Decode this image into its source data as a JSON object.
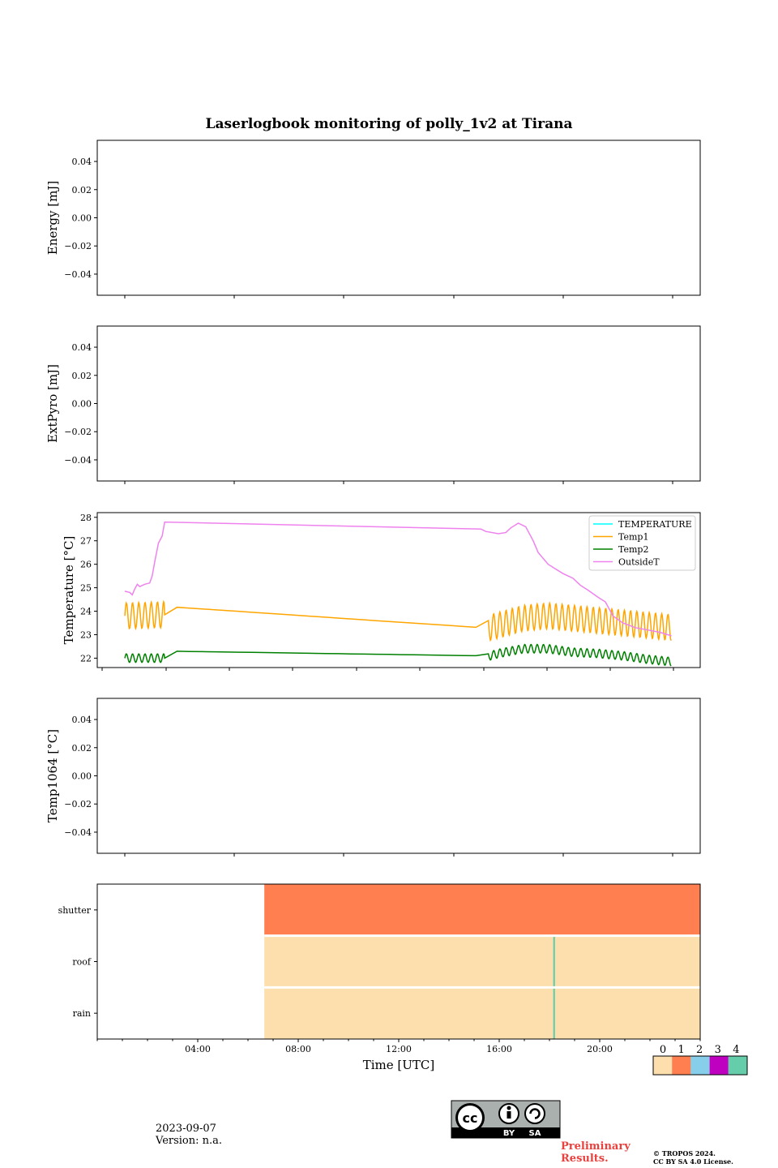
{
  "chart_data": [
    {
      "type": "line",
      "title": "Laserlogbook monitoring of polly_1v2 at Tirana",
      "ylabel": "Energy [mJ]",
      "ylim": [
        -0.055,
        0.055
      ],
      "yticks": [
        "0.04",
        "0.02",
        "0.00",
        "−0.02",
        "−0.04"
      ],
      "series": []
    },
    {
      "type": "line",
      "ylabel": "ExtPyro [mJ]",
      "ylim": [
        -0.055,
        0.055
      ],
      "yticks": [
        "0.04",
        "0.02",
        "0.00",
        "−0.02",
        "−0.04"
      ],
      "series": []
    },
    {
      "type": "line",
      "ylabel": "Temperature [°C]",
      "ylim": [
        21.6,
        28.2
      ],
      "yticks": [
        "28",
        "27",
        "26",
        "25",
        "24",
        "23",
        "22"
      ],
      "legend": "top-right",
      "series": [
        {
          "name": "TEMPERATURE",
          "color": "#00ffff",
          "points": []
        },
        {
          "name": "Temp1",
          "color": "#ffa500",
          "base": [
            [
              1.0,
              23.8
            ],
            [
              2.6,
              23.85
            ],
            [
              2.65,
              24.2
            ],
            [
              15.3,
              23.3
            ],
            [
              15.35,
              23.2
            ],
            [
              16.0,
              23.4
            ],
            [
              17.0,
              23.7
            ],
            [
              18.0,
              23.8
            ],
            [
              19.0,
              23.7
            ],
            [
              20.0,
              23.6
            ],
            [
              21.0,
              23.5
            ],
            [
              22.0,
              23.4
            ],
            [
              22.95,
              23.3
            ]
          ],
          "amp": 0.55,
          "period": 0.25,
          "osc_ranges": [
            [
              1.0,
              2.6
            ],
            [
              15.3,
              22.95
            ]
          ]
        },
        {
          "name": "Temp2",
          "color": "#008000",
          "base": [
            [
              1.0,
              22.0
            ],
            [
              2.6,
              22.0
            ],
            [
              2.65,
              22.3
            ],
            [
              15.3,
              22.1
            ],
            [
              15.35,
              22.0
            ],
            [
              16.0,
              22.2
            ],
            [
              17.0,
              22.4
            ],
            [
              18.0,
              22.4
            ],
            [
              19.0,
              22.25
            ],
            [
              20.0,
              22.2
            ],
            [
              21.0,
              22.1
            ],
            [
              22.0,
              21.95
            ],
            [
              22.95,
              21.85
            ]
          ],
          "amp": 0.18,
          "period": 0.25,
          "osc_ranges": [
            [
              1.0,
              2.6
            ],
            [
              15.3,
              22.95
            ]
          ]
        },
        {
          "name": "OutsideT",
          "color": "#ee82ee",
          "points": [
            [
              1.0,
              24.85
            ],
            [
              1.2,
              24.8
            ],
            [
              1.3,
              24.7
            ],
            [
              1.4,
              24.95
            ],
            [
              1.5,
              25.15
            ],
            [
              1.6,
              25.05
            ],
            [
              1.8,
              25.15
            ],
            [
              2.0,
              25.2
            ],
            [
              2.1,
              25.5
            ],
            [
              2.2,
              26.1
            ],
            [
              2.35,
              26.9
            ],
            [
              2.5,
              27.2
            ],
            [
              2.6,
              27.8
            ],
            [
              15.3,
              27.5
            ],
            [
              15.5,
              27.4
            ],
            [
              16.0,
              27.3
            ],
            [
              16.3,
              27.35
            ],
            [
              16.5,
              27.55
            ],
            [
              16.8,
              27.75
            ],
            [
              17.1,
              27.6
            ],
            [
              17.4,
              27.0
            ],
            [
              17.6,
              26.5
            ],
            [
              18.0,
              26.0
            ],
            [
              18.3,
              25.8
            ],
            [
              18.6,
              25.6
            ],
            [
              19.0,
              25.4
            ],
            [
              19.3,
              25.1
            ],
            [
              19.6,
              24.9
            ],
            [
              20.0,
              24.6
            ],
            [
              20.3,
              24.4
            ],
            [
              20.6,
              23.8
            ],
            [
              21.0,
              23.5
            ],
            [
              21.5,
              23.3
            ],
            [
              22.0,
              23.2
            ],
            [
              22.5,
              23.1
            ],
            [
              22.95,
              22.95
            ]
          ]
        }
      ]
    },
    {
      "type": "line",
      "ylabel": "Temp1064 [°C]",
      "ylim": [
        -0.055,
        0.055
      ],
      "yticks": [
        "0.04",
        "0.02",
        "0.00",
        "−0.02",
        "−0.04"
      ],
      "series": []
    },
    {
      "type": "heatmap",
      "xlabel": "Time [UTC]",
      "xlim": [
        0.0,
        24.0
      ],
      "xticks": [
        "04:00",
        "08:00",
        "12:00",
        "16:00",
        "20:00"
      ],
      "rows": [
        "shutter",
        "roof",
        "rain"
      ],
      "segments": [
        {
          "row": "shutter",
          "start": 6.65,
          "end": 24.0,
          "value": 1
        },
        {
          "row": "roof",
          "start": 6.65,
          "end": 24.0,
          "value": 0
        },
        {
          "row": "roof",
          "start": 18.15,
          "end": 18.22,
          "value": 4
        },
        {
          "row": "rain",
          "start": 6.65,
          "end": 24.0,
          "value": 0
        },
        {
          "row": "rain",
          "start": 18.15,
          "end": 18.22,
          "value": 4
        }
      ],
      "colorbar": {
        "labels": [
          "0",
          "1",
          "2",
          "3",
          "4"
        ],
        "colors": [
          "#fcdfac",
          "#ff7f50",
          "#87ceeb",
          "#c000c0",
          "#66cdaa"
        ]
      }
    }
  ],
  "footer": {
    "date": "2023-09-07",
    "version": "Version: n.a.",
    "license_badge": [
      "BY",
      "SA"
    ],
    "preliminary_line1": "Preliminary",
    "preliminary_line2": "Results.",
    "copyright_line1": "© TROPOS 2024.",
    "copyright_line2": "CC BY SA 4.0 License."
  }
}
